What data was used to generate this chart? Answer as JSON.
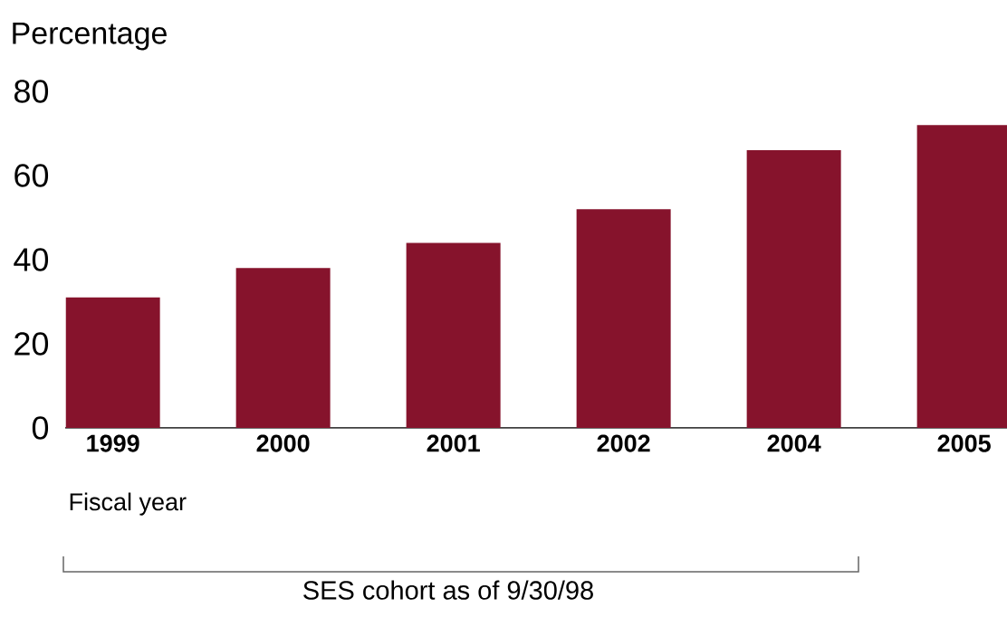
{
  "chart_data": {
    "type": "bar",
    "ylabel": "Percentage",
    "xlabel": "Fiscal year",
    "categories": [
      "1999",
      "2000",
      "2001",
      "2002",
      "2004",
      "2005"
    ],
    "values": [
      31,
      38,
      44,
      52,
      66,
      72
    ],
    "color": "#86132c",
    "ylim": [
      0,
      80
    ],
    "yticks": [
      0,
      20,
      40,
      60,
      80
    ],
    "annotations": [
      "SES cohort as of 9/30/98"
    ]
  }
}
